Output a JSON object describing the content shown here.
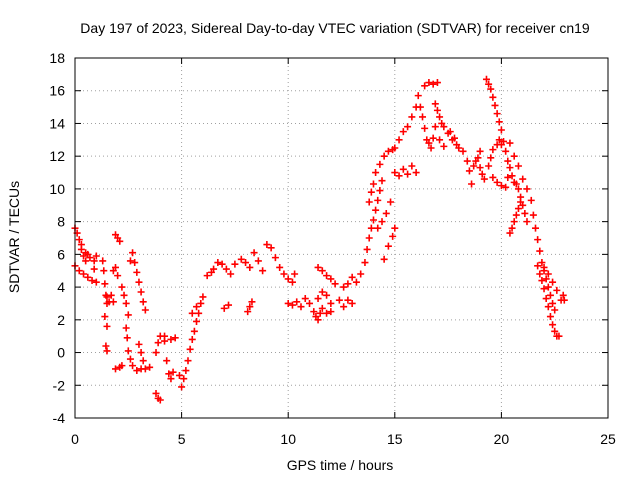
{
  "chart_data": {
    "type": "scatter",
    "title": "Day 197 of 2023, Sidereal Day-to-day VTEC variation (SDTVAR) for receiver cn19",
    "xlabel": "GPS time / hours",
    "ylabel": "SDTVAR / TECUs",
    "xlim": [
      0,
      25
    ],
    "ylim": [
      -4,
      18
    ],
    "x_ticks": [
      0,
      5,
      10,
      15,
      20,
      25
    ],
    "y_ticks": [
      -4,
      -2,
      0,
      2,
      4,
      6,
      8,
      10,
      12,
      14,
      16,
      18
    ],
    "grid": true,
    "marker": "+",
    "series": [
      {
        "name": "SDTVAR",
        "color": "#ff0000",
        "points": [
          [
            0.0,
            7.6
          ],
          [
            0.1,
            7.3
          ],
          [
            0.2,
            6.9
          ],
          [
            0.3,
            6.3
          ],
          [
            0.4,
            5.9
          ],
          [
            0.5,
            5.6
          ],
          [
            0.0,
            5.3
          ],
          [
            0.2,
            5.0
          ],
          [
            0.4,
            4.8
          ],
          [
            0.6,
            4.6
          ],
          [
            0.8,
            4.4
          ],
          [
            1.0,
            4.3
          ],
          [
            0.5,
            6.1
          ],
          [
            0.7,
            5.8
          ],
          [
            0.9,
            5.6
          ],
          [
            1.0,
            5.9
          ],
          [
            1.3,
            5.6
          ],
          [
            1.35,
            5.0
          ],
          [
            1.4,
            4.2
          ],
          [
            1.45,
            3.5
          ],
          [
            1.5,
            3.0
          ],
          [
            1.4,
            2.2
          ],
          [
            1.5,
            1.6
          ],
          [
            1.45,
            0.4
          ],
          [
            1.5,
            0.1
          ],
          [
            1.5,
            3.4
          ],
          [
            1.6,
            3.1
          ],
          [
            1.7,
            3.5
          ],
          [
            1.8,
            3.1
          ],
          [
            1.8,
            5.0
          ],
          [
            1.9,
            5.2
          ],
          [
            2.0,
            4.7
          ],
          [
            1.9,
            -1.0
          ],
          [
            2.1,
            -0.9
          ],
          [
            2.2,
            -0.8
          ],
          [
            1.9,
            7.2
          ],
          [
            2.0,
            7.0
          ],
          [
            2.1,
            6.8
          ],
          [
            2.2,
            4.0
          ],
          [
            2.3,
            3.5
          ],
          [
            2.4,
            3.0
          ],
          [
            2.5,
            2.3
          ],
          [
            2.4,
            1.5
          ],
          [
            2.45,
            0.9
          ],
          [
            2.5,
            0.1
          ],
          [
            2.6,
            -0.4
          ],
          [
            2.7,
            -0.8
          ],
          [
            2.9,
            -1.1
          ],
          [
            3.1,
            -1.0
          ],
          [
            2.6,
            5.6
          ],
          [
            2.7,
            6.1
          ],
          [
            2.8,
            5.5
          ],
          [
            2.9,
            4.9
          ],
          [
            3.0,
            4.3
          ],
          [
            3.1,
            3.7
          ],
          [
            3.2,
            3.1
          ],
          [
            3.3,
            2.6
          ],
          [
            3.0,
            0.5
          ],
          [
            3.1,
            0.0
          ],
          [
            3.2,
            -0.5
          ],
          [
            3.3,
            -1.0
          ],
          [
            3.5,
            -0.9
          ],
          [
            3.8,
            -2.5
          ],
          [
            3.9,
            -2.8
          ],
          [
            4.0,
            -2.9
          ],
          [
            3.8,
            0.0
          ],
          [
            3.9,
            0.6
          ],
          [
            4.0,
            1.0
          ],
          [
            4.2,
            0.7
          ],
          [
            4.3,
            -0.5
          ],
          [
            4.4,
            -1.3
          ],
          [
            4.5,
            -1.6
          ],
          [
            4.6,
            -1.2
          ],
          [
            4.2,
            1.0
          ],
          [
            4.5,
            0.8
          ],
          [
            4.7,
            0.9
          ],
          [
            4.9,
            -1.4
          ],
          [
            5.0,
            -2.1
          ],
          [
            5.1,
            -1.6
          ],
          [
            5.2,
            -1.1
          ],
          [
            5.3,
            -0.5
          ],
          [
            5.4,
            0.2
          ],
          [
            5.5,
            0.8
          ],
          [
            5.6,
            1.3
          ],
          [
            5.7,
            1.9
          ],
          [
            5.8,
            2.4
          ],
          [
            5.9,
            3.0
          ],
          [
            5.5,
            2.4
          ],
          [
            5.7,
            2.8
          ],
          [
            6.0,
            3.4
          ],
          [
            6.5,
            5.1
          ],
          [
            6.7,
            5.5
          ],
          [
            6.9,
            5.4
          ],
          [
            7.1,
            5.1
          ],
          [
            7.3,
            4.8
          ],
          [
            7.5,
            5.4
          ],
          [
            6.2,
            4.7
          ],
          [
            6.4,
            4.9
          ],
          [
            7.0,
            2.7
          ],
          [
            7.2,
            2.9
          ],
          [
            7.8,
            5.7
          ],
          [
            8.0,
            5.5
          ],
          [
            8.2,
            5.2
          ],
          [
            8.4,
            6.1
          ],
          [
            8.6,
            5.6
          ],
          [
            8.8,
            5.0
          ],
          [
            8.1,
            2.5
          ],
          [
            8.2,
            2.8
          ],
          [
            8.3,
            3.1
          ],
          [
            9.0,
            6.6
          ],
          [
            9.2,
            6.4
          ],
          [
            9.4,
            5.8
          ],
          [
            9.6,
            5.2
          ],
          [
            9.8,
            4.8
          ],
          [
            10.0,
            4.5
          ],
          [
            10.2,
            4.3
          ],
          [
            10.3,
            4.8
          ],
          [
            10.0,
            3.0
          ],
          [
            10.2,
            2.9
          ],
          [
            10.4,
            3.1
          ],
          [
            10.6,
            2.8
          ],
          [
            10.8,
            3.3
          ],
          [
            11.0,
            3.0
          ],
          [
            11.2,
            2.5
          ],
          [
            11.3,
            2.2
          ],
          [
            11.4,
            2.0
          ],
          [
            11.5,
            2.4
          ],
          [
            11.6,
            2.7
          ],
          [
            11.8,
            2.4
          ],
          [
            12.0,
            2.5
          ],
          [
            11.4,
            3.3
          ],
          [
            11.6,
            3.7
          ],
          [
            11.8,
            3.5
          ],
          [
            12.0,
            3.0
          ],
          [
            11.4,
            5.2
          ],
          [
            11.6,
            5.0
          ],
          [
            11.8,
            4.7
          ],
          [
            12.0,
            4.5
          ],
          [
            12.2,
            4.2
          ],
          [
            12.4,
            3.2
          ],
          [
            12.6,
            2.8
          ],
          [
            12.8,
            3.2
          ],
          [
            13.0,
            3.0
          ],
          [
            12.6,
            4.0
          ],
          [
            12.8,
            4.2
          ],
          [
            13.0,
            4.6
          ],
          [
            13.2,
            4.3
          ],
          [
            13.4,
            4.8
          ],
          [
            13.6,
            5.5
          ],
          [
            13.7,
            6.3
          ],
          [
            13.8,
            7.0
          ],
          [
            13.9,
            7.6
          ],
          [
            14.0,
            8.1
          ],
          [
            14.1,
            8.7
          ],
          [
            14.2,
            9.3
          ],
          [
            14.3,
            9.9
          ],
          [
            14.4,
            10.5
          ],
          [
            13.8,
            9.2
          ],
          [
            13.9,
            9.8
          ],
          [
            14.0,
            10.3
          ],
          [
            14.1,
            11.0
          ],
          [
            14.3,
            11.5
          ],
          [
            14.5,
            12.0
          ],
          [
            14.7,
            12.3
          ],
          [
            14.9,
            12.4
          ],
          [
            15.0,
            12.5
          ],
          [
            15.2,
            13.0
          ],
          [
            15.4,
            13.5
          ],
          [
            15.6,
            13.8
          ],
          [
            15.8,
            14.4
          ],
          [
            16.0,
            15.0
          ],
          [
            16.1,
            15.7
          ],
          [
            16.2,
            15.0
          ],
          [
            16.3,
            14.4
          ],
          [
            16.4,
            13.7
          ],
          [
            16.5,
            13.0
          ],
          [
            16.6,
            12.8
          ],
          [
            16.7,
            12.5
          ],
          [
            16.8,
            13.1
          ],
          [
            16.9,
            13.8
          ],
          [
            16.4,
            16.3
          ],
          [
            16.6,
            16.5
          ],
          [
            16.8,
            16.4
          ],
          [
            17.0,
            16.5
          ],
          [
            16.9,
            15.2
          ],
          [
            17.0,
            14.8
          ],
          [
            17.1,
            14.4
          ],
          [
            17.2,
            14.0
          ],
          [
            17.3,
            13.8
          ],
          [
            17.5,
            13.4
          ],
          [
            17.7,
            13.0
          ],
          [
            17.9,
            12.7
          ],
          [
            18.0,
            12.5
          ],
          [
            17.1,
            13.0
          ],
          [
            17.3,
            12.6
          ],
          [
            17.6,
            13.5
          ],
          [
            17.8,
            13.1
          ],
          [
            15.0,
            11.0
          ],
          [
            15.2,
            10.8
          ],
          [
            15.4,
            11.2
          ],
          [
            15.6,
            10.9
          ],
          [
            15.8,
            11.4
          ],
          [
            16.0,
            11.0
          ],
          [
            14.2,
            7.6
          ],
          [
            14.4,
            8.0
          ],
          [
            14.6,
            8.5
          ],
          [
            14.8,
            9.2
          ],
          [
            14.5,
            5.7
          ],
          [
            14.7,
            6.5
          ],
          [
            14.9,
            7.1
          ],
          [
            15.0,
            7.6
          ],
          [
            18.2,
            12.3
          ],
          [
            18.4,
            11.7
          ],
          [
            18.5,
            11.1
          ],
          [
            18.6,
            10.3
          ],
          [
            18.8,
            11.7
          ],
          [
            19.0,
            11.3
          ],
          [
            19.1,
            10.9
          ],
          [
            19.2,
            10.6
          ],
          [
            19.4,
            11.4
          ],
          [
            19.5,
            11.9
          ],
          [
            19.6,
            12.4
          ],
          [
            19.8,
            12.7
          ],
          [
            19.9,
            13.0
          ],
          [
            20.0,
            12.7
          ],
          [
            19.3,
            16.7
          ],
          [
            19.4,
            16.4
          ],
          [
            19.5,
            16.1
          ],
          [
            19.6,
            15.6
          ],
          [
            19.7,
            15.1
          ],
          [
            19.8,
            14.6
          ],
          [
            19.9,
            14.1
          ],
          [
            20.0,
            13.6
          ],
          [
            20.1,
            12.9
          ],
          [
            20.2,
            12.3
          ],
          [
            20.3,
            11.7
          ],
          [
            20.4,
            11.3
          ],
          [
            20.5,
            10.8
          ],
          [
            20.6,
            10.4
          ],
          [
            20.7,
            10.3
          ],
          [
            20.8,
            10.0
          ],
          [
            20.9,
            9.5
          ],
          [
            21.0,
            9.0
          ],
          [
            21.1,
            8.5
          ],
          [
            21.2,
            8.0
          ],
          [
            20.4,
            7.3
          ],
          [
            20.5,
            7.6
          ],
          [
            20.6,
            8.0
          ],
          [
            20.7,
            8.4
          ],
          [
            20.8,
            8.8
          ],
          [
            20.9,
            9.2
          ],
          [
            20.4,
            12.8
          ],
          [
            20.6,
            12.0
          ],
          [
            20.8,
            11.4
          ],
          [
            21.0,
            10.6
          ],
          [
            21.2,
            10.0
          ],
          [
            21.4,
            9.3
          ],
          [
            21.5,
            8.4
          ],
          [
            21.6,
            7.6
          ],
          [
            21.7,
            6.9
          ],
          [
            21.8,
            6.2
          ],
          [
            21.9,
            5.5
          ],
          [
            22.0,
            5.0
          ],
          [
            22.1,
            4.5
          ],
          [
            22.2,
            4.0
          ],
          [
            22.3,
            3.5
          ],
          [
            22.4,
            3.0
          ],
          [
            22.5,
            2.6
          ],
          [
            21.7,
            5.3
          ],
          [
            21.8,
            4.8
          ],
          [
            21.9,
            4.4
          ],
          [
            22.0,
            3.9
          ],
          [
            22.1,
            3.3
          ],
          [
            22.2,
            2.8
          ],
          [
            22.3,
            2.2
          ],
          [
            22.4,
            1.7
          ],
          [
            22.5,
            1.3
          ],
          [
            22.6,
            1.0
          ],
          [
            22.7,
            1.0
          ],
          [
            22.0,
            5.2
          ],
          [
            22.2,
            4.8
          ],
          [
            22.4,
            4.3
          ],
          [
            22.6,
            3.8
          ],
          [
            22.8,
            3.2
          ],
          [
            22.9,
            3.5
          ],
          [
            22.95,
            3.2
          ],
          [
            19.6,
            10.7
          ],
          [
            19.8,
            10.4
          ],
          [
            20.0,
            10.2
          ],
          [
            20.2,
            10.1
          ],
          [
            20.3,
            10.7
          ],
          [
            18.7,
            11.4
          ],
          [
            18.9,
            11.9
          ],
          [
            19.0,
            12.3
          ],
          [
            0.3,
            6.6
          ],
          [
            0.6,
            6.0
          ],
          [
            0.9,
            5.1
          ]
        ]
      }
    ]
  }
}
